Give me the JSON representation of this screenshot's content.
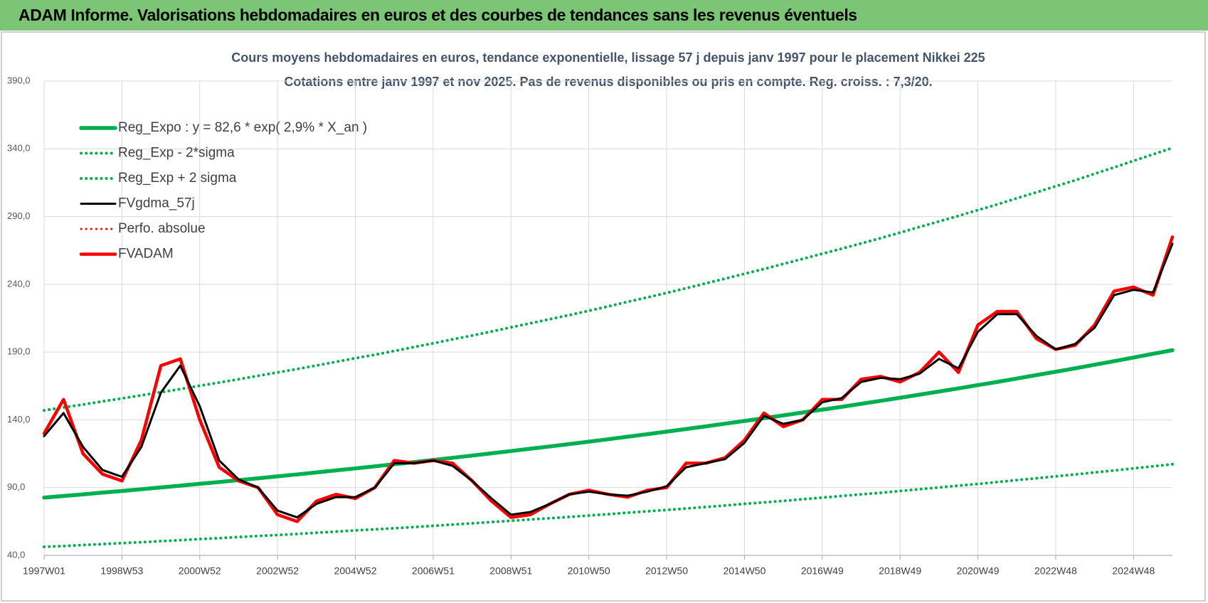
{
  "header": {
    "title": "ADAM Informe. Valorisations hebdomadaires en euros et des courbes de tendances sans les revenus éventuels"
  },
  "chart_data": {
    "type": "line",
    "title": "Cours moyens hebdomadaires en euros, tendance exponentielle, lissage 57 j depuis janv 1997 pour le placement Nikkei 225",
    "subtitle": "Cotations entre janv 1997 et nov 2025. Pas de revenus disponibles ou pris en compte. Reg. croiss. : 7,3/20.",
    "categories": [
      "1997W01",
      null,
      null,
      null,
      "1998W53",
      null,
      null,
      null,
      "2000W52",
      null,
      null,
      null,
      "2002W52",
      null,
      null,
      null,
      "2004W52",
      null,
      null,
      null,
      "2006W51",
      null,
      null,
      null,
      "2008W51",
      null,
      null,
      null,
      "2010W50",
      null,
      null,
      null,
      "2012W50",
      null,
      null,
      null,
      "2014W50",
      null,
      null,
      null,
      "2016W49",
      null,
      null,
      null,
      "2018W49",
      null,
      null,
      null,
      "2020W49",
      null,
      null,
      null,
      "2022W48",
      null,
      null,
      null,
      "2024W48",
      null,
      null
    ],
    "ylim": [
      40,
      390
    ],
    "yticks": [
      {
        "value": 40,
        "label": "40,0"
      },
      {
        "value": 90,
        "label": "90,0"
      },
      {
        "value": 140,
        "label": "140,0"
      },
      {
        "value": 190,
        "label": "190,0"
      },
      {
        "value": 240,
        "label": "240,0"
      },
      {
        "value": 290,
        "label": "290,0"
      },
      {
        "value": 340,
        "label": "340,0"
      },
      {
        "value": 390,
        "label": "390,0"
      }
    ],
    "grid": true,
    "legend": "top-left",
    "series": [
      {
        "name": "Reg_Expo : y = 82,6 * exp( 2,9% *  X_an )",
        "color": "#00b050",
        "style": "solid",
        "values": [
          82.6,
          83.8,
          85.0,
          86.3,
          87.5,
          88.8,
          90.1,
          91.4,
          92.8,
          94.1,
          95.5,
          96.9,
          98.3,
          99.7,
          101.2,
          102.7,
          104.2,
          105.7,
          107.2,
          108.8,
          110.4,
          112.0,
          113.6,
          115.3,
          117.0,
          118.7,
          120.4,
          122.1,
          123.9,
          125.7,
          127.6,
          129.4,
          131.3,
          133.2,
          135.2,
          137.2,
          139.2,
          141.2,
          143.3,
          145.4,
          147.5,
          149.6,
          151.8,
          154.0,
          156.3,
          158.6,
          160.9,
          163.2,
          165.6,
          168.0,
          170.5,
          173.0,
          175.5,
          178.0,
          180.7,
          183.3,
          186.0,
          188.7,
          191.4
        ]
      },
      {
        "name": "Reg_Exp - 2*sigma",
        "color": "#00b050",
        "style": "dotted",
        "values": [
          46.3,
          46.9,
          47.6,
          48.3,
          49.0,
          49.7,
          50.5,
          51.2,
          52.0,
          52.7,
          53.5,
          54.3,
          55.0,
          55.8,
          56.7,
          57.5,
          58.4,
          59.2,
          60.0,
          60.9,
          61.8,
          62.7,
          63.6,
          64.6,
          65.5,
          66.5,
          67.4,
          68.4,
          69.4,
          70.4,
          71.5,
          72.5,
          73.5,
          74.6,
          75.7,
          76.8,
          78.0,
          79.1,
          80.2,
          81.4,
          82.6,
          83.8,
          85.0,
          86.2,
          87.5,
          88.8,
          90.1,
          91.4,
          92.7,
          94.1,
          95.5,
          96.9,
          98.3,
          99.7,
          101.2,
          102.6,
          104.2,
          105.7,
          107.2
        ]
      },
      {
        "name": "Reg_Exp + 2 sigma",
        "color": "#00b050",
        "style": "dotted",
        "values": [
          147.0,
          149.2,
          151.3,
          153.6,
          155.8,
          158.1,
          160.4,
          162.7,
          165.2,
          167.5,
          170.0,
          172.5,
          175.0,
          177.5,
          180.1,
          182.8,
          185.5,
          188.1,
          190.8,
          193.7,
          196.5,
          199.4,
          202.2,
          205.2,
          208.3,
          211.3,
          214.3,
          217.3,
          220.5,
          223.7,
          227.1,
          230.3,
          233.7,
          237.1,
          240.7,
          244.2,
          247.8,
          251.3,
          255.1,
          258.8,
          262.6,
          266.3,
          270.2,
          274.1,
          278.2,
          282.3,
          286.4,
          290.5,
          294.8,
          299.0,
          303.5,
          307.9,
          312.4,
          316.8,
          321.6,
          326.3,
          331.1,
          335.9,
          340.7
        ]
      },
      {
        "name": "FVgdma_57j",
        "color": "#000000",
        "style": "solid",
        "values": [
          128,
          145,
          120,
          103,
          98,
          120,
          160,
          180,
          150,
          110,
          96,
          90,
          73,
          68,
          78,
          83,
          83,
          90,
          108,
          108,
          110,
          106,
          95,
          82,
          70,
          72,
          78,
          85,
          87,
          85,
          84,
          87,
          91,
          105,
          108,
          111,
          123,
          143,
          137,
          140,
          153,
          156,
          168,
          171,
          170,
          174,
          185,
          178,
          205,
          218,
          218,
          202,
          192,
          196,
          208,
          232,
          236,
          234,
          270
        ]
      },
      {
        "name": "Perfo. absolue",
        "color": "#ff0000",
        "style": "dotted",
        "values": [
          130,
          155,
          115,
          100,
          95,
          125,
          180,
          185,
          140,
          105,
          95,
          90,
          70,
          65,
          80,
          85,
          82,
          90,
          110,
          108,
          110,
          108,
          95,
          80,
          68,
          70,
          78,
          85,
          88,
          85,
          83,
          88,
          90,
          108,
          108,
          112,
          125,
          145,
          135,
          140,
          155,
          155,
          170,
          172,
          168,
          175,
          190,
          175,
          210,
          220,
          220,
          200,
          192,
          195,
          210,
          235,
          238,
          232,
          275
        ]
      },
      {
        "name": "FVADAM",
        "color": "#ff0000",
        "style": "solid",
        "values": [
          130,
          155,
          115,
          100,
          95,
          125,
          180,
          185,
          140,
          105,
          95,
          90,
          70,
          65,
          80,
          85,
          82,
          90,
          110,
          108,
          110,
          108,
          95,
          80,
          68,
          70,
          78,
          85,
          88,
          85,
          83,
          88,
          90,
          108,
          108,
          112,
          125,
          145,
          135,
          140,
          155,
          155,
          170,
          172,
          168,
          175,
          190,
          175,
          210,
          220,
          220,
          200,
          192,
          195,
          210,
          235,
          238,
          232,
          275
        ]
      }
    ]
  }
}
